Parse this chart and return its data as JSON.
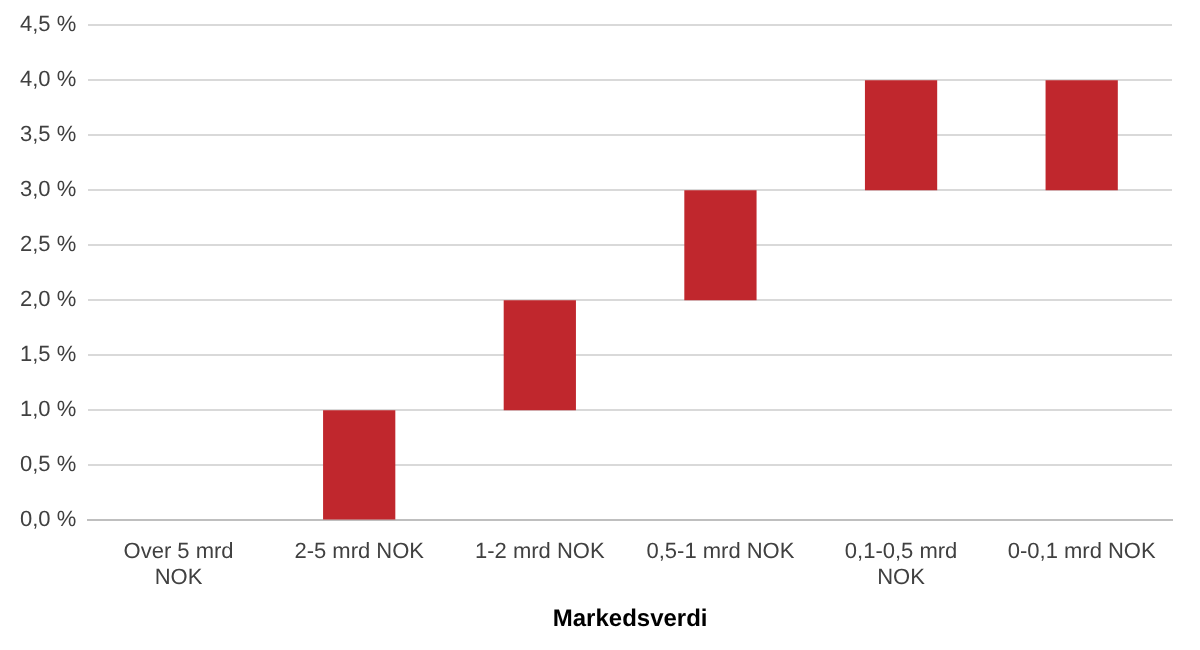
{
  "chart_data": {
    "type": "bar",
    "xlabel": "Markedsverdi",
    "categories": [
      "Over 5 mrd NOK",
      "2-5 mrd NOK",
      "1-2 mrd NOK",
      "0,5-1 mrd NOK",
      "0,1-0,5 mrd NOK",
      "0-0,1 mrd NOK"
    ],
    "base": [
      null,
      0,
      1,
      2,
      3,
      3
    ],
    "values": [
      null,
      1,
      1,
      1,
      1,
      1
    ],
    "color": "#c0272d",
    "ylim": [
      0,
      4.5
    ],
    "yticks": [
      {
        "value": 0,
        "label": "0,0 %"
      },
      {
        "value": 0.5,
        "label": "0,5 %"
      },
      {
        "value": 1,
        "label": "1,0 %"
      },
      {
        "value": 1.5,
        "label": "1,5 %"
      },
      {
        "value": 2,
        "label": "2,0 %"
      },
      {
        "value": 2.5,
        "label": "2,5 %"
      },
      {
        "value": 3,
        "label": "3,0 %"
      },
      {
        "value": 3.5,
        "label": "3,5 %"
      },
      {
        "value": 4,
        "label": "4,0 %"
      },
      {
        "value": 4.5,
        "label": "4,5 %"
      }
    ],
    "grid": "y",
    "legend": false
  }
}
